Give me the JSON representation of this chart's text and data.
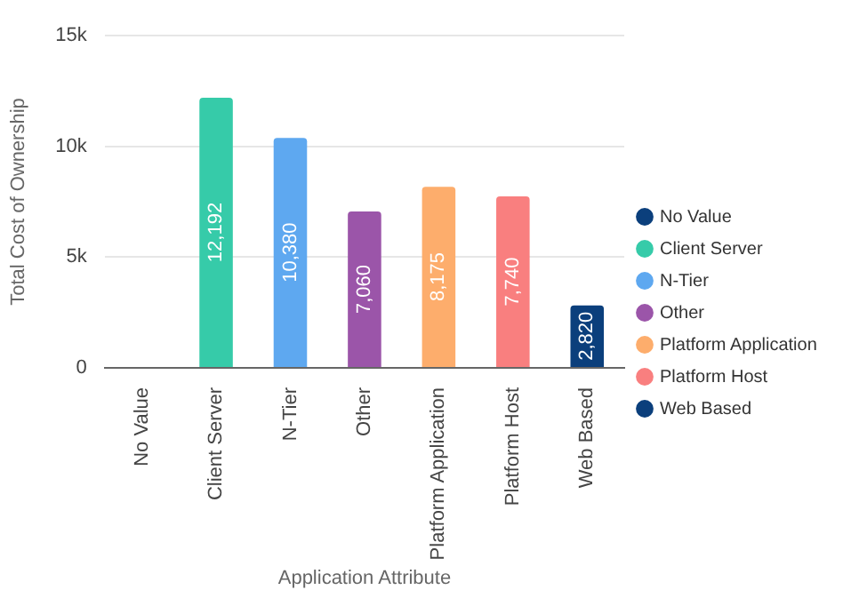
{
  "chart_data": {
    "type": "bar",
    "categories": [
      "No Value",
      "Client Server",
      "N-Tier",
      "Other",
      "Platform Application",
      "Platform Host",
      "Web Based"
    ],
    "series": [
      {
        "name": "No Value",
        "color": "#0b3f7c",
        "values": [
          null,
          null,
          null,
          null,
          null,
          null,
          null
        ]
      },
      {
        "name": "Client Server",
        "color": "#36cba9",
        "values": [
          null,
          12192,
          null,
          null,
          null,
          null,
          null
        ],
        "value_labels": [
          null,
          "12,192",
          null,
          null,
          null,
          null,
          null
        ]
      },
      {
        "name": "N-Tier",
        "color": "#5ea8f0",
        "values": [
          null,
          null,
          10380,
          null,
          null,
          null,
          null
        ],
        "value_labels": [
          null,
          null,
          "10,380",
          null,
          null,
          null,
          null
        ]
      },
      {
        "name": "Other",
        "color": "#9b55a9",
        "values": [
          null,
          null,
          null,
          7060,
          null,
          null,
          null
        ],
        "value_labels": [
          null,
          null,
          null,
          "7,060",
          null,
          null,
          null
        ]
      },
      {
        "name": "Platform Application",
        "color": "#fdad6c",
        "values": [
          null,
          null,
          null,
          null,
          8175,
          null,
          null
        ],
        "value_labels": [
          null,
          null,
          null,
          null,
          "8,175",
          null,
          null
        ]
      },
      {
        "name": "Platform Host",
        "color": "#f97f7f",
        "values": [
          null,
          null,
          null,
          null,
          null,
          7740,
          null
        ],
        "value_labels": [
          null,
          null,
          null,
          null,
          null,
          "7,740",
          null
        ]
      },
      {
        "name": "Web Based",
        "color": "#0b3f7c",
        "values": [
          null,
          null,
          null,
          null,
          null,
          null,
          2820
        ],
        "value_labels": [
          null,
          null,
          null,
          null,
          null,
          null,
          "2,820"
        ]
      }
    ],
    "xlabel": "Application Attribute",
    "ylabel": "Total Cost of Ownership",
    "ylim": [
      0,
      15000
    ],
    "yticks": [
      0,
      {
        "value": 5000,
        "label": "5k"
      },
      {
        "value": 10000,
        "label": "10k"
      },
      {
        "value": 15000,
        "label": "15k"
      }
    ],
    "grid": "y",
    "legend": "right"
  }
}
